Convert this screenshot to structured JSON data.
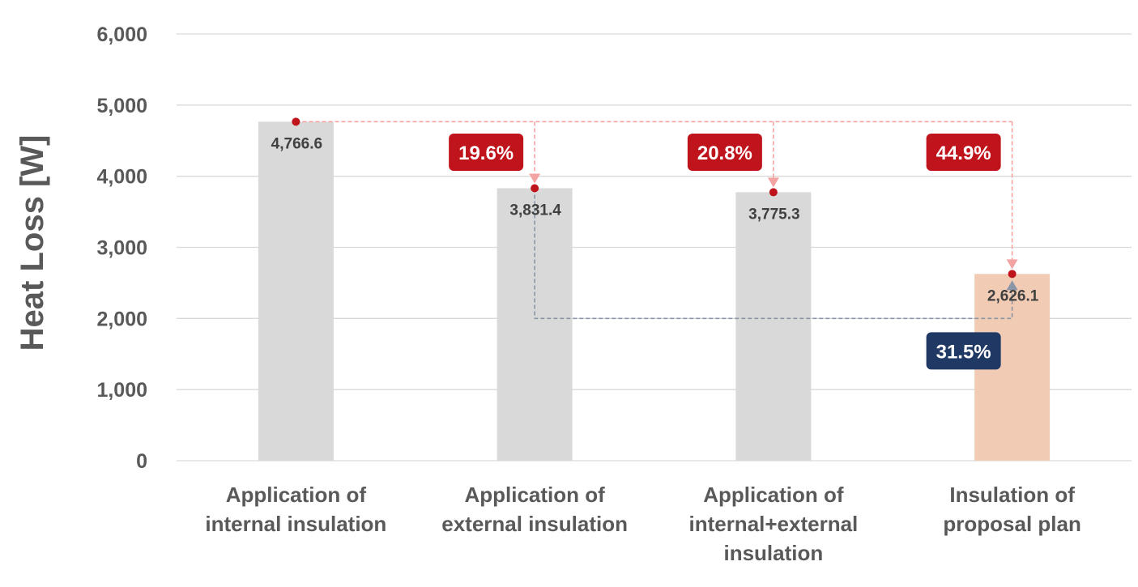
{
  "chart_data": {
    "type": "bar",
    "categories": [
      [
        "Application of",
        "internal insulation"
      ],
      [
        "Application of",
        "external insulation"
      ],
      [
        "Application of",
        "internal+external",
        "insulation"
      ],
      [
        "Insulation of",
        "proposal plan"
      ]
    ],
    "values": [
      4766.6,
      3831.4,
      3775.3,
      2626.1
    ],
    "value_labels": [
      "4,766.6",
      "3,831.4",
      "3,775.3",
      "2,626.1"
    ],
    "ylabel": "Heat Loss [W]",
    "xlabel": "",
    "title": "",
    "ylim": [
      0,
      6000
    ],
    "yticks": [
      0,
      1000,
      2000,
      3000,
      4000,
      5000,
      6000
    ],
    "ytick_labels": [
      "0",
      "1,000",
      "2,000",
      "3,000",
      "4,000",
      "5,000",
      "6,000"
    ],
    "grid": true,
    "bar_colors": [
      "#d9d9d9",
      "#d9d9d9",
      "#d9d9d9",
      "#f1cbb3"
    ],
    "annotations": [
      {
        "text": "19.6%",
        "from_index": 0,
        "to_index": 1,
        "color": "#c0141c"
      },
      {
        "text": "20.8%",
        "from_index": 0,
        "to_index": 2,
        "color": "#c0141c"
      },
      {
        "text": "44.9%",
        "from_index": 0,
        "to_index": 3,
        "color": "#c0141c"
      },
      {
        "text": "31.5%",
        "from_index": 1,
        "to_index": 3,
        "color": "#1f3864"
      }
    ]
  },
  "colors": {
    "grid": "#d9d9d9",
    "axis_text": "#595959",
    "marker": "#c0141c",
    "reference_line_red": "#f4a3a3",
    "reference_line_blue": "#8a96a8",
    "label_text": "#404040"
  }
}
